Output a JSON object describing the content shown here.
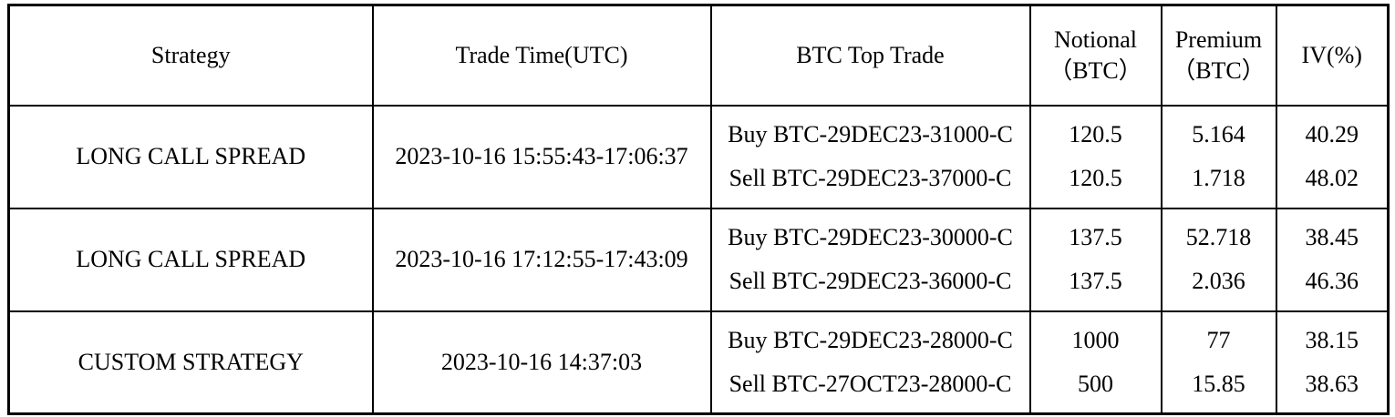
{
  "accent_colors": {
    "border": "#000000",
    "text": "#000000",
    "background": "#ffffff"
  },
  "table": {
    "headers": {
      "strategy": "Strategy",
      "trade_time": "Trade Time(UTC)",
      "top_trade": "BTC Top Trade",
      "notional": "Notional\n（BTC）",
      "premium": "Premium\n（BTC）",
      "iv": "IV(%)"
    },
    "rows": [
      {
        "strategy": "LONG CALL SPREAD",
        "trade_time": "2023-10-16 15:55:43-17:06:37",
        "legs": [
          {
            "trade": "Buy BTC-29DEC23-31000-C",
            "notional": "120.5",
            "premium": "5.164",
            "iv": "40.29"
          },
          {
            "trade": "Sell BTC-29DEC23-37000-C",
            "notional": "120.5",
            "premium": "1.718",
            "iv": "48.02"
          }
        ]
      },
      {
        "strategy": "LONG CALL SPREAD",
        "trade_time": "2023-10-16 17:12:55-17:43:09",
        "legs": [
          {
            "trade": "Buy BTC-29DEC23-30000-C",
            "notional": "137.5",
            "premium": "52.718",
            "iv": "38.45"
          },
          {
            "trade": "Sell BTC-29DEC23-36000-C",
            "notional": "137.5",
            "premium": "2.036",
            "iv": "46.36"
          }
        ]
      },
      {
        "strategy": "CUSTOM STRATEGY",
        "trade_time": "2023-10-16 14:37:03",
        "legs": [
          {
            "trade": "Buy BTC-29DEC23-28000-C",
            "notional": "1000",
            "premium": "77",
            "iv": "38.15"
          },
          {
            "trade": "Sell BTC-27OCT23-28000-C",
            "notional": "500",
            "premium": "15.85",
            "iv": "38.63"
          }
        ]
      }
    ]
  },
  "chart_data": {
    "type": "table",
    "title": "",
    "columns": [
      "Strategy",
      "Trade Time(UTC)",
      "BTC Top Trade",
      "Notional（BTC）",
      "Premium（BTC）",
      "IV(%)"
    ],
    "rows": [
      [
        "LONG CALL SPREAD",
        "2023-10-16 15:55:43-17:06:37",
        "Buy BTC-29DEC23-31000-C / Sell BTC-29DEC23-37000-C",
        "120.5 / 120.5",
        "5.164 / 1.718",
        "40.29 / 48.02"
      ],
      [
        "LONG CALL SPREAD",
        "2023-10-16 17:12:55-17:43:09",
        "Buy BTC-29DEC23-30000-C / Sell BTC-29DEC23-36000-C",
        "137.5 / 137.5",
        "52.718 / 2.036",
        "38.45 / 46.36"
      ],
      [
        "CUSTOM STRATEGY",
        "2023-10-16 14:37:03",
        "Buy BTC-29DEC23-28000-C / Sell BTC-27OCT23-28000-C",
        "1000 / 500",
        "77 / 15.85",
        "38.15 / 38.63"
      ]
    ]
  }
}
